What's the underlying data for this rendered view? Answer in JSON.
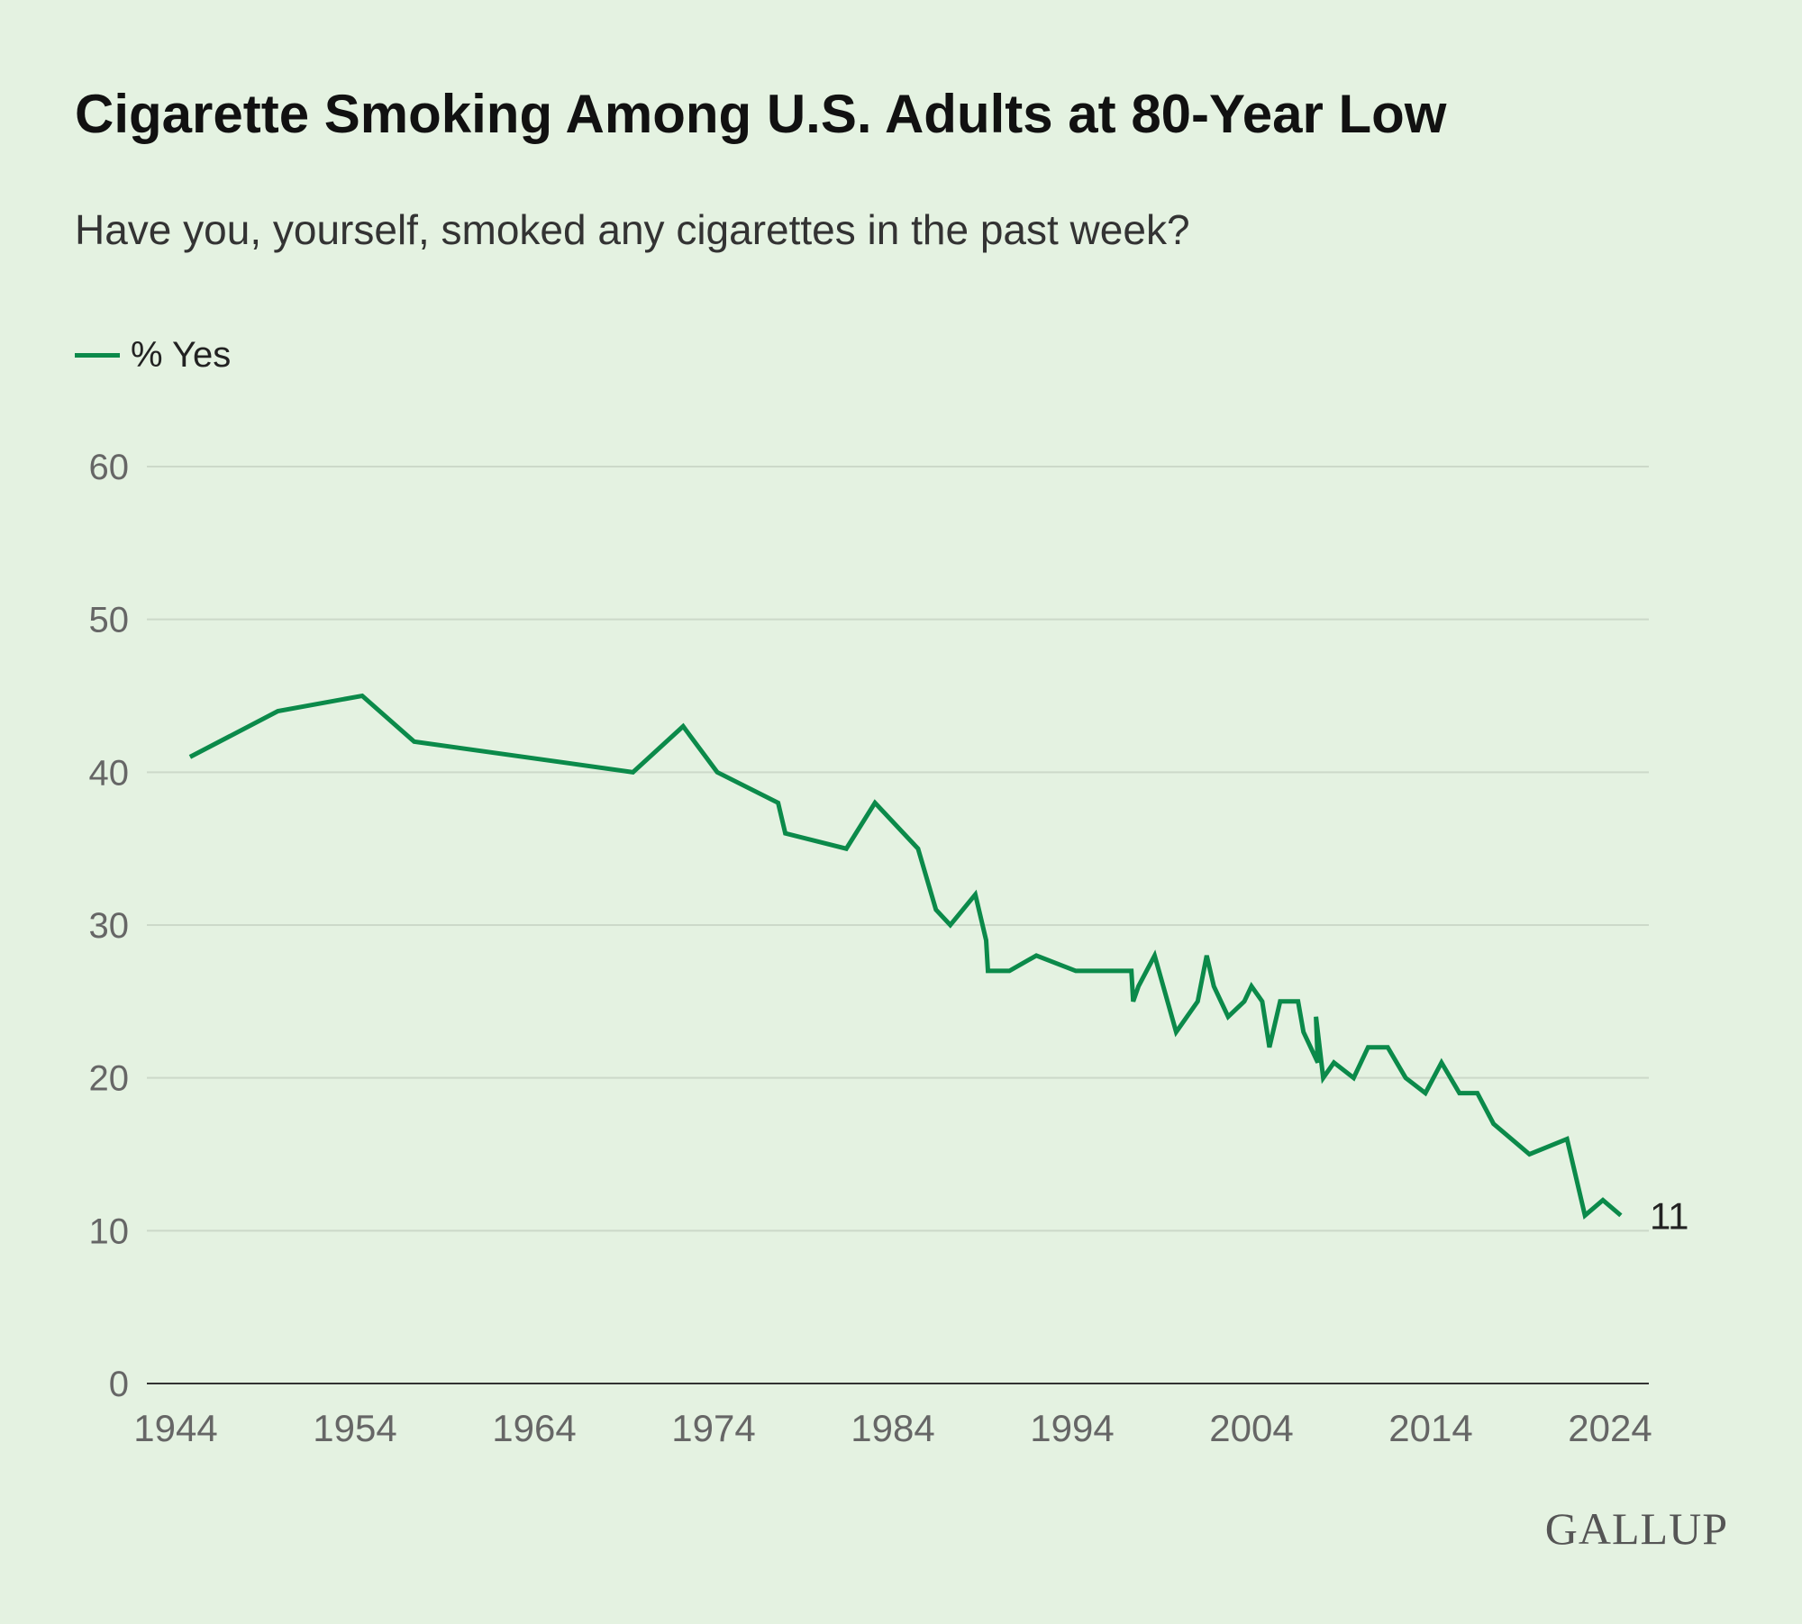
{
  "colors": {
    "background": "#e4f2e1",
    "line": "#0b8a4a",
    "grid": "#ccd9c9",
    "axis": "#333333"
  },
  "logo": "GALLUP",
  "chart_data": {
    "type": "line",
    "title": "Cigarette Smoking Among U.S. Adults at 80-Year Low",
    "subtitle": "Have you, yourself, smoked any cigarettes in the past week?",
    "xlabel": "",
    "ylabel": "",
    "xlim": [
      1944,
      2024
    ],
    "ylim": [
      0,
      60
    ],
    "x_ticks": [
      "1944",
      "1954",
      "1964",
      "1974",
      "1984",
      "1994",
      "2004",
      "2014",
      "2024"
    ],
    "y_ticks": [
      "0",
      "10",
      "20",
      "30",
      "40",
      "50",
      "60"
    ],
    "grid": true,
    "legend_position": "top-left",
    "end_label": "11",
    "series": [
      {
        "name": "% Yes",
        "x": [
          1944.8,
          1949.7,
          1954.4,
          1957.3,
          1969.5,
          1972.3,
          1974.2,
          1977.6,
          1978.0,
          1981.4,
          1983.0,
          1985.4,
          1986.4,
          1987.2,
          1988.6,
          1989.2,
          1989.3,
          1990.5,
          1992.0,
          1994.2,
          1997.3,
          1997.4,
          1997.7,
          1998.6,
          1999.8,
          2001.0,
          2001.5,
          2001.9,
          2002.7,
          2003.6,
          2004.0,
          2004.6,
          2005.0,
          2005.6,
          2006.6,
          2006.9,
          2007.7,
          2007.6,
          2008.0,
          2008.6,
          2009.7,
          2010.5,
          2011.6,
          2012.6,
          2013.7,
          2014.6,
          2015.6,
          2016.6,
          2017.5,
          2019.5,
          2021.6,
          2022.6,
          2023.6,
          2024.6
        ],
        "values": [
          41,
          44,
          45,
          42,
          40,
          43,
          40,
          38,
          36,
          35,
          38,
          35,
          31,
          30,
          32,
          29,
          27,
          27,
          28,
          27,
          27,
          25,
          26,
          28,
          23,
          25,
          28,
          26,
          24,
          25,
          26,
          25,
          22,
          25,
          25,
          23,
          21,
          24,
          20,
          21,
          20,
          22,
          22,
          20,
          19,
          21,
          19,
          19,
          17,
          15,
          16,
          11,
          12,
          11
        ]
      }
    ]
  }
}
